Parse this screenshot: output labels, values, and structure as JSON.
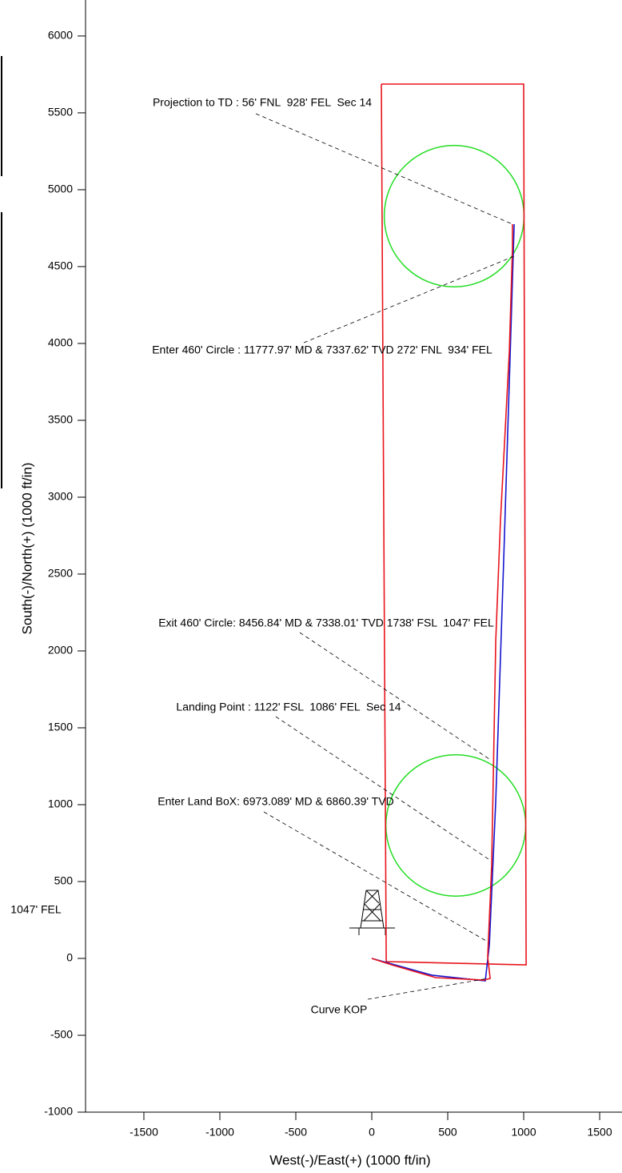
{
  "chart_data": {
    "type": "line",
    "xlabel": "West(-)/East(+) (1000 ft/in)",
    "ylabel": "South(-)/North(+) (1000 ft/in)",
    "xlim": [
      -1884,
      1647
    ],
    "ylim": [
      -1000,
      6234
    ],
    "xticks": [
      -1500,
      -1000,
      -500,
      0,
      500,
      1000,
      1500
    ],
    "yticks": [
      -1000,
      -500,
      0,
      500,
      1000,
      1500,
      2000,
      2500,
      3000,
      3500,
      4000,
      4500,
      5000,
      5500,
      6000
    ],
    "series": [
      {
        "color": "#e8141c",
        "x": [
          63,
          1000,
          1016,
          95,
          63
        ],
        "y": [
          5687,
          5687,
          -42,
          -21,
          5687
        ]
      },
      {
        "color": "#1515d0",
        "x": [
          0,
          395,
          747,
          774,
          816,
          868,
          910,
          937
        ],
        "y": [
          0,
          -109,
          -146,
          89,
          1026,
          2589,
          3891,
          4776
        ]
      },
      {
        "color": "#e8141c",
        "x": [
          0,
          132,
          421,
          737,
          779,
          763,
          789,
          816,
          847,
          905,
          926,
          926
        ],
        "y": [
          0,
          -42,
          -125,
          -141,
          -130,
          10,
          609,
          2068,
          2849,
          3943,
          4620,
          4776
        ]
      }
    ],
    "circles": [
      {
        "color": "#22dd22",
        "x": 542,
        "y": 4828,
        "r": 460
      },
      {
        "color": "#22dd22",
        "x": 553,
        "y": 865,
        "r": 460
      }
    ],
    "annotations": [
      "Projection to TD : 56' FNL  928' FEL  Sec 14",
      "Enter 460' Circle : 11777.97' MD & 7337.62' TVD 272' FNL  934' FEL",
      "Exit 460' Circle: 8456.84' MD & 7338.01' TVD 1738' FSL  1047' FEL",
      "Landing Point : 1122' FSL  1086' FEL  Sec 14",
      "Enter Land BoX: 6973.089' MD & 6860.39' TVD",
      "Curve KOP",
      "1047' FEL"
    ]
  }
}
